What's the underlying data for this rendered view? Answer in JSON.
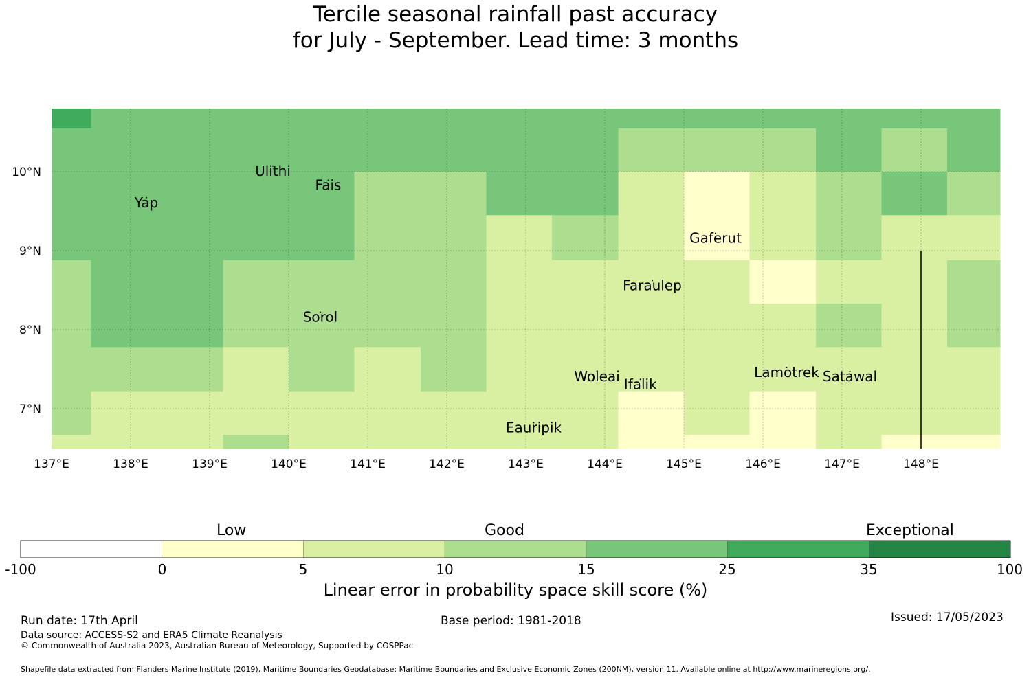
{
  "title": {
    "line1": "Tercile seasonal rainfall past accuracy",
    "line2": "for July - September. Lead time: 3 months"
  },
  "map": {
    "lon_range": [
      137,
      149
    ],
    "lat_range": [
      6.5,
      10.8
    ],
    "lon_ticks": [
      "137°E",
      "138°E",
      "139°E",
      "140°E",
      "141°E",
      "142°E",
      "143°E",
      "144°E",
      "145°E",
      "146°E",
      "147°E",
      "148°E"
    ],
    "lat_ticks": [
      "10°N",
      "9°N",
      "8°N",
      "7°N"
    ],
    "places": [
      {
        "name": "Ulithi",
        "lon": 139.8,
        "lat": 9.95
      },
      {
        "name": "Fais",
        "lon": 140.5,
        "lat": 9.77
      },
      {
        "name": "Yap",
        "lon": 138.2,
        "lat": 9.55
      },
      {
        "name": "Gaferut",
        "lon": 145.4,
        "lat": 9.1
      },
      {
        "name": "Faraulep",
        "lon": 144.6,
        "lat": 8.5
      },
      {
        "name": "Sorol",
        "lon": 140.4,
        "lat": 8.1
      },
      {
        "name": "Woleai",
        "lon": 143.9,
        "lat": 7.35
      },
      {
        "name": "Ifalik",
        "lon": 144.45,
        "lat": 7.25
      },
      {
        "name": "Lamotrek",
        "lon": 146.3,
        "lat": 7.4
      },
      {
        "name": "Satawal",
        "lon": 147.1,
        "lat": 7.35
      },
      {
        "name": "Eauripik",
        "lon": 143.1,
        "lat": 6.7
      }
    ],
    "grid_lon_edges": [
      137,
      137.5,
      138.33,
      139.17,
      140,
      140.83,
      141.67,
      142.5,
      143.33,
      144.17,
      145,
      145.83,
      146.67,
      147.5,
      148.33,
      149
    ],
    "grid_lat_edges": [
      10.8,
      10.55,
      10,
      9.45,
      8.88,
      8.33,
      7.78,
      7.22,
      6.67,
      6.5
    ],
    "grid_categories": [
      [
        5,
        4,
        4,
        4,
        4,
        4,
        4,
        4,
        4,
        4,
        4,
        4,
        4,
        4,
        4
      ],
      [
        4,
        4,
        4,
        4,
        4,
        4,
        4,
        4,
        4,
        3,
        3,
        3,
        4,
        3,
        4
      ],
      [
        4,
        4,
        4,
        4,
        4,
        3,
        3,
        4,
        4,
        2,
        1,
        2,
        3,
        4,
        3
      ],
      [
        4,
        4,
        4,
        4,
        4,
        3,
        3,
        2,
        3,
        2,
        1,
        2,
        3,
        2,
        2
      ],
      [
        3,
        4,
        4,
        3,
        3,
        3,
        3,
        2,
        2,
        2,
        2,
        1,
        2,
        2,
        3
      ],
      [
        3,
        4,
        4,
        3,
        3,
        3,
        3,
        2,
        2,
        2,
        2,
        2,
        3,
        2,
        3
      ],
      [
        3,
        3,
        3,
        2,
        3,
        2,
        3,
        2,
        2,
        2,
        2,
        2,
        2,
        2,
        2
      ],
      [
        3,
        2,
        2,
        2,
        2,
        2,
        2,
        2,
        2,
        1,
        2,
        1,
        2,
        2,
        2
      ],
      [
        2,
        2,
        2,
        3,
        2,
        2,
        2,
        2,
        2,
        1,
        1,
        1,
        2,
        1,
        1
      ]
    ],
    "boundary_line": {
      "lon": 148,
      "lat_top": 9.0,
      "lat_bottom": 6.5
    }
  },
  "legend": {
    "category_labels": [
      "Low",
      "Good",
      "Exceptional"
    ],
    "ticks": [
      "-100",
      "0",
      "5",
      "10",
      "15",
      "25",
      "35",
      "100"
    ],
    "colors": [
      "#ffffff",
      "#ffffcc",
      "#d9f0a3",
      "#addd8e",
      "#78c679",
      "#41ab5d",
      "#238443"
    ],
    "axis_label": "Linear error in probability space skill score (%)"
  },
  "footer": {
    "run_date": "Run date: 17th April",
    "base_period": "Base period: 1981-2018",
    "issued": "Issued: 17/05/2023",
    "data_source": "Data source: ACCESS-S2 and ERA5 Climate Reanalysis",
    "copyright": "© Commonwealth of Australia 2023, Australian Bureau of Meteorology, Supported by COSPPac",
    "shapefile": "Shapefile data extracted from Flanders Marine Institute (2019), Maritime Boundaries Geodatabase: Maritime Boundaries and Exclusive Economic Zones (200NM), version 11. Available online at http://www.marineregions.org/."
  }
}
